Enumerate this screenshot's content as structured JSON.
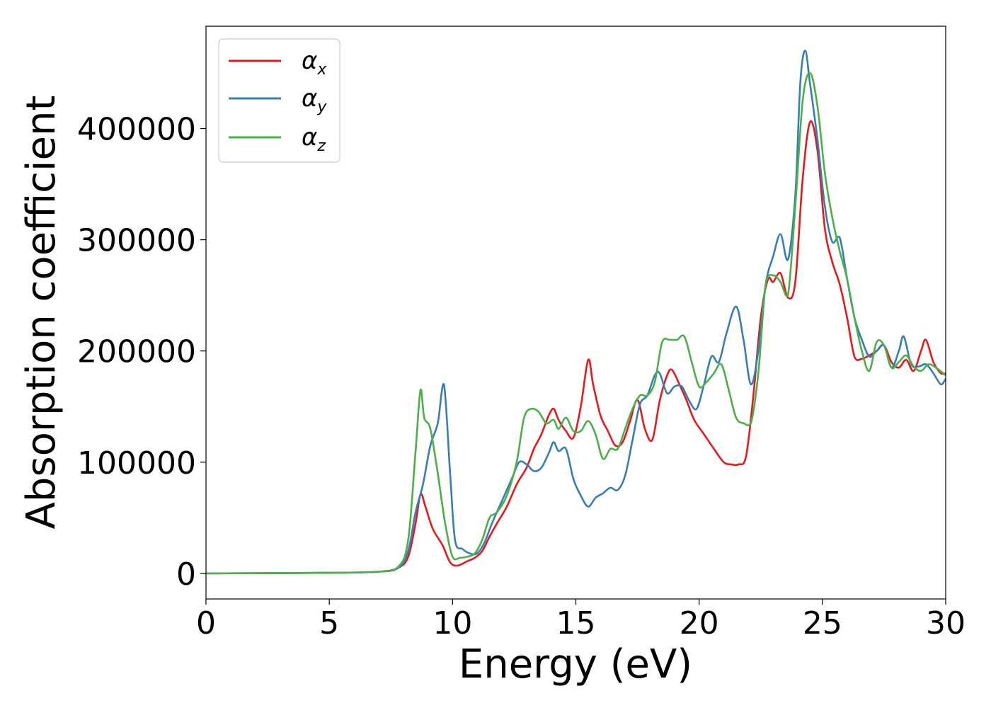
{
  "chart_data": {
    "type": "line",
    "xlabel": "Energy (eV)",
    "ylabel": "Absorption coefficient",
    "xlim": [
      0,
      30
    ],
    "ylim": [
      -23000,
      492000
    ],
    "xticks": [
      0,
      5,
      10,
      15,
      20,
      25,
      30
    ],
    "xtick_labels": [
      "0",
      "5",
      "10",
      "15",
      "20",
      "25",
      "30"
    ],
    "yticks": [
      0,
      100000,
      200000,
      300000,
      400000
    ],
    "ytick_labels": [
      "0",
      "100000",
      "200000",
      "300000",
      "400000"
    ],
    "grid": false,
    "legend_position": "top-left",
    "series": [
      {
        "name": "α_x",
        "label_main": "α",
        "label_sub": "x",
        "color": "#e41a1c",
        "x": [
          0,
          5,
          7,
          7.8,
          8.2,
          8.5,
          8.7,
          8.9,
          9.2,
          9.6,
          9.9,
          10.2,
          10.6,
          10.9,
          11.2,
          11.5,
          11.8,
          12.2,
          12.6,
          13.0,
          13.3,
          13.6,
          13.9,
          14.1,
          14.3,
          14.6,
          14.9,
          15.2,
          15.5,
          15.7,
          16.0,
          16.3,
          16.6,
          16.9,
          17.2,
          17.5,
          17.8,
          18.1,
          18.4,
          18.7,
          18.9,
          19.2,
          19.5,
          19.8,
          20.2,
          20.6,
          21.0,
          21.3,
          21.6,
          21.9,
          22.2,
          22.5,
          22.8,
          23.0,
          23.3,
          23.6,
          23.9,
          24.2,
          24.5,
          24.8,
          25.1,
          25.4,
          25.7,
          26.0,
          26.3,
          26.6,
          26.9,
          27.2,
          27.5,
          27.8,
          28.1,
          28.4,
          28.7,
          29.0,
          29.2,
          29.5,
          29.8,
          30.0
        ],
        "y": [
          0,
          500,
          1500,
          5000,
          15000,
          45000,
          71000,
          60000,
          40000,
          25000,
          10000,
          7000,
          11000,
          14000,
          20000,
          33000,
          45000,
          60000,
          80000,
          95000,
          112000,
          125000,
          142000,
          148000,
          138000,
          128000,
          122000,
          150000,
          192000,
          170000,
          142000,
          128000,
          115000,
          118000,
          137000,
          156000,
          130000,
          120000,
          155000,
          178000,
          183000,
          170000,
          155000,
          138000,
          125000,
          112000,
          100000,
          98000,
          98000,
          105000,
          160000,
          230000,
          265000,
          262000,
          270000,
          248000,
          262000,
          355000,
          406000,
          380000,
          310000,
          280000,
          260000,
          230000,
          195000,
          193000,
          196000,
          200000,
          205000,
          190000,
          185000,
          192000,
          182000,
          200000,
          210000,
          190000,
          180000,
          180000
        ]
      },
      {
        "name": "α_y",
        "label_main": "α",
        "label_sub": "y",
        "color": "#377eb8",
        "x": [
          0,
          5,
          7,
          7.8,
          8.2,
          8.5,
          8.8,
          9.1,
          9.4,
          9.65,
          9.9,
          10.1,
          10.4,
          10.7,
          11.0,
          11.3,
          11.6,
          12.0,
          12.4,
          12.7,
          13.0,
          13.3,
          13.6,
          13.9,
          14.1,
          14.3,
          14.6,
          14.9,
          15.2,
          15.5,
          15.8,
          16.1,
          16.4,
          16.7,
          17.0,
          17.3,
          17.6,
          17.9,
          18.2,
          18.4,
          18.7,
          19.0,
          19.3,
          19.6,
          19.9,
          20.2,
          20.5,
          20.8,
          21.1,
          21.5,
          21.8,
          22.1,
          22.4,
          22.7,
          23.0,
          23.3,
          23.6,
          23.9,
          24.1,
          24.3,
          24.5,
          24.8,
          25.1,
          25.4,
          25.7,
          26.0,
          26.3,
          26.6,
          26.9,
          27.2,
          27.5,
          27.8,
          28.1,
          28.3,
          28.6,
          28.9,
          29.2,
          29.5,
          29.8,
          30.0
        ],
        "y": [
          0,
          500,
          1500,
          5000,
          20000,
          55000,
          80000,
          115000,
          135000,
          170000,
          90000,
          30000,
          22000,
          18000,
          18000,
          28000,
          45000,
          65000,
          85000,
          100000,
          98000,
          92000,
          95000,
          108000,
          118000,
          110000,
          112000,
          85000,
          70000,
          60000,
          68000,
          72000,
          77000,
          75000,
          88000,
          120000,
          152000,
          160000,
          178000,
          180000,
          162000,
          168000,
          168000,
          155000,
          148000,
          170000,
          195000,
          190000,
          215000,
          240000,
          210000,
          170000,
          200000,
          260000,
          285000,
          305000,
          282000,
          340000,
          440000,
          470000,
          440000,
          390000,
          330000,
          298000,
          302000,
          265000,
          230000,
          210000,
          195000,
          200000,
          205000,
          185000,
          200000,
          213000,
          188000,
          186000,
          188000,
          180000,
          170000,
          175000
        ]
      },
      {
        "name": "α_z",
        "label_main": "α",
        "label_sub": "z",
        "color": "#4daf4a",
        "x": [
          0,
          5,
          7,
          7.8,
          8.2,
          8.5,
          8.7,
          8.85,
          9.1,
          9.4,
          9.7,
          10.0,
          10.3,
          10.6,
          10.9,
          11.2,
          11.5,
          11.8,
          12.2,
          12.6,
          12.9,
          13.2,
          13.5,
          13.8,
          14.1,
          14.3,
          14.6,
          14.9,
          15.2,
          15.5,
          15.8,
          16.1,
          16.4,
          16.7,
          17.0,
          17.3,
          17.6,
          17.9,
          18.2,
          18.5,
          18.8,
          19.1,
          19.4,
          19.7,
          20.0,
          20.3,
          20.6,
          20.9,
          21.2,
          21.5,
          21.8,
          22.1,
          22.4,
          22.7,
          23.0,
          23.3,
          23.6,
          23.9,
          24.2,
          24.5,
          24.8,
          25.1,
          25.4,
          25.7,
          26.0,
          26.3,
          26.6,
          26.9,
          27.2,
          27.5,
          27.8,
          28.1,
          28.4,
          28.7,
          29.0,
          29.3,
          29.6,
          30.0
        ],
        "y": [
          0,
          500,
          1500,
          6000,
          30000,
          110000,
          165000,
          140000,
          130000,
          90000,
          45000,
          15000,
          14000,
          15000,
          18000,
          30000,
          50000,
          55000,
          70000,
          100000,
          140000,
          148000,
          145000,
          135000,
          138000,
          130000,
          140000,
          128000,
          128000,
          137000,
          125000,
          103000,
          112000,
          112000,
          130000,
          148000,
          160000,
          160000,
          172000,
          208000,
          210000,
          210000,
          213000,
          190000,
          168000,
          172000,
          180000,
          188000,
          165000,
          140000,
          135000,
          135000,
          180000,
          260000,
          268000,
          262000,
          250000,
          330000,
          425000,
          450000,
          420000,
          360000,
          320000,
          290000,
          265000,
          230000,
          200000,
          182000,
          208000,
          205000,
          185000,
          190000,
          196000,
          186000,
          182000,
          188000,
          185000,
          178000
        ]
      }
    ]
  }
}
